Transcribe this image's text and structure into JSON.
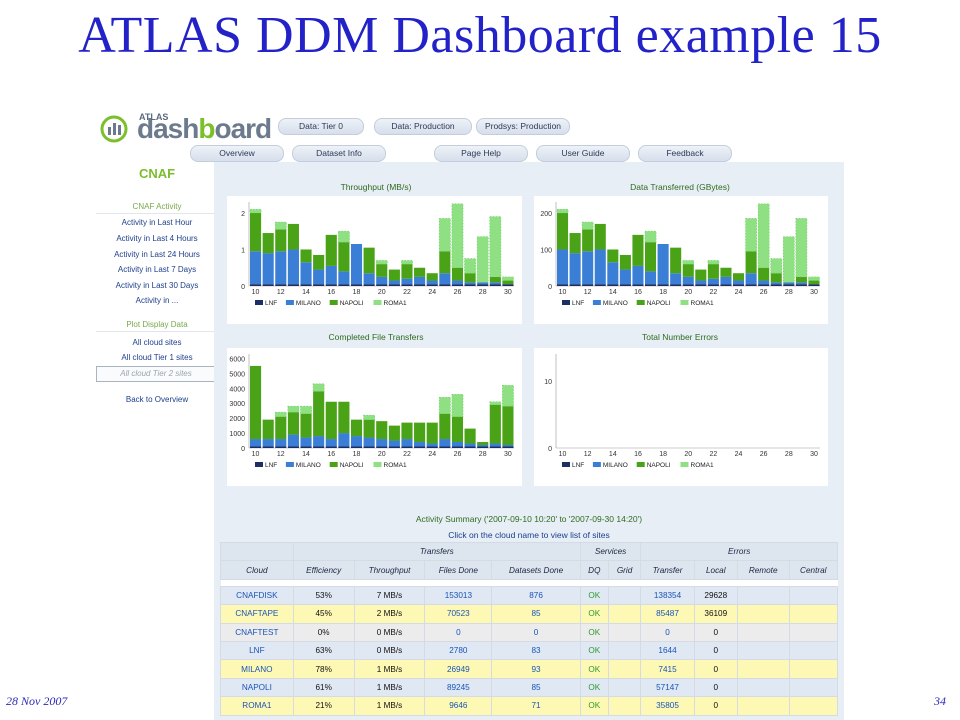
{
  "slide": {
    "title": "ATLAS DDM Dashboard example 15",
    "date": "28 Nov 2007",
    "page": "34"
  },
  "header": {
    "logo_small": "ATLAS",
    "logo_a": "dash",
    "logo_b": "b",
    "logo_c": "oard",
    "top_tabs": [
      "Data: Tier 0",
      "Data: Production",
      "Prodsys: Production"
    ],
    "nav_tabs": [
      "Overview",
      "Dataset Info",
      "Page Help",
      "User Guide",
      "Feedback"
    ]
  },
  "sidebar": {
    "site": "CNAF",
    "activity_title": "CNAF Activity",
    "activity_items": [
      "Activity in Last Hour",
      "Activity in Last 4 Hours",
      "Activity in Last 24 Hours",
      "Activity in Last 7 Days",
      "Activity in Last 30 Days",
      "Activity in ..."
    ],
    "plot_title": "Plot Display Data",
    "plot_items": [
      "All cloud sites",
      "All cloud Tier 1 sites",
      "All cloud Tier 2 sites"
    ],
    "back": "Back to Overview"
  },
  "colors": {
    "LNF": "#1b2f66",
    "MILANO": "#3a7fd5",
    "NAPOLI": "#4aa316",
    "ROMA1": "#8fe083",
    "title_blue": "#2222c8",
    "accent_green": "#7cbd2d"
  },
  "chart_data": [
    {
      "type": "bar",
      "title": "Throughput (MB/s)",
      "x": [
        10,
        11,
        12,
        13,
        14,
        15,
        16,
        17,
        18,
        19,
        20,
        21,
        22,
        23,
        24,
        25,
        26,
        27,
        28,
        29,
        30
      ],
      "xticks": [
        "10",
        "12",
        "14",
        "16",
        "18",
        "20",
        "22",
        "24",
        "26",
        "28",
        "30"
      ],
      "yticks": [
        "0",
        "1",
        "2"
      ],
      "ylim": [
        0,
        2.3
      ],
      "series": [
        {
          "name": "LNF",
          "values": [
            0.05,
            0.05,
            0.05,
            0.05,
            0.05,
            0.05,
            0.05,
            0.05,
            0.05,
            0.05,
            0.05,
            0.05,
            0.05,
            0.05,
            0.05,
            0.05,
            0.05,
            0.05,
            0.05,
            0.05,
            0.05
          ]
        },
        {
          "name": "MILANO",
          "values": [
            0.9,
            0.85,
            0.9,
            0.95,
            0.6,
            0.4,
            0.5,
            0.35,
            1.1,
            0.3,
            0.2,
            0.1,
            0.15,
            0.2,
            0.1,
            0.3,
            0.1,
            0.05,
            0.05,
            0.05,
            0.0
          ]
        },
        {
          "name": "NAPOLI",
          "values": [
            1.05,
            0.55,
            0.6,
            0.7,
            0.35,
            0.4,
            0.85,
            0.8,
            0.0,
            0.7,
            0.35,
            0.3,
            0.4,
            0.25,
            0.2,
            0.6,
            0.35,
            0.25,
            0.0,
            0.15,
            0.1
          ]
        },
        {
          "name": "ROMA1",
          "values": [
            0.1,
            0.0,
            0.2,
            0.0,
            0.0,
            0.0,
            0.0,
            0.3,
            0.0,
            0.0,
            0.1,
            0.0,
            0.1,
            0.0,
            0.0,
            0.9,
            1.75,
            0.4,
            1.25,
            1.65,
            0.1
          ]
        }
      ]
    },
    {
      "type": "bar",
      "title": "Data Transferred (GBytes)",
      "x": [
        10,
        11,
        12,
        13,
        14,
        15,
        16,
        17,
        18,
        19,
        20,
        21,
        22,
        23,
        24,
        25,
        26,
        27,
        28,
        29,
        30
      ],
      "xticks": [
        "10",
        "12",
        "14",
        "16",
        "18",
        "20",
        "22",
        "24",
        "26",
        "28",
        "30"
      ],
      "yticks": [
        "0",
        "100",
        "200"
      ],
      "ylim": [
        0,
        230
      ],
      "series": [
        {
          "name": "LNF",
          "values": [
            5,
            5,
            5,
            5,
            5,
            5,
            5,
            5,
            5,
            5,
            5,
            5,
            5,
            5,
            5,
            5,
            5,
            5,
            5,
            5,
            5
          ]
        },
        {
          "name": "MILANO",
          "values": [
            95,
            85,
            90,
            95,
            60,
            40,
            50,
            35,
            110,
            30,
            20,
            10,
            15,
            20,
            10,
            30,
            10,
            5,
            5,
            5,
            0
          ]
        },
        {
          "name": "NAPOLI",
          "values": [
            100,
            55,
            60,
            70,
            35,
            40,
            85,
            80,
            0,
            70,
            35,
            30,
            40,
            25,
            20,
            60,
            35,
            25,
            0,
            15,
            10
          ]
        },
        {
          "name": "ROMA1",
          "values": [
            10,
            0,
            20,
            0,
            0,
            0,
            0,
            30,
            0,
            0,
            10,
            0,
            10,
            0,
            0,
            90,
            175,
            40,
            125,
            160,
            10
          ]
        }
      ]
    },
    {
      "type": "bar",
      "title": "Completed File Transfers",
      "x": [
        10,
        11,
        12,
        13,
        14,
        15,
        16,
        17,
        18,
        19,
        20,
        21,
        22,
        23,
        24,
        25,
        26,
        27,
        28,
        29,
        30
      ],
      "xticks": [
        "10",
        "12",
        "14",
        "16",
        "18",
        "20",
        "22",
        "24",
        "26",
        "28",
        "30"
      ],
      "yticks": [
        "0",
        "1000",
        "2000",
        "3000",
        "4000",
        "5000",
        "6000"
      ],
      "ylim": [
        0,
        6300
      ],
      "series": [
        {
          "name": "LNF",
          "values": [
            100,
            100,
            100,
            100,
            100,
            100,
            100,
            100,
            100,
            100,
            100,
            100,
            100,
            100,
            100,
            100,
            100,
            100,
            100,
            100,
            100
          ]
        },
        {
          "name": "MILANO",
          "values": [
            500,
            500,
            500,
            800,
            600,
            700,
            500,
            900,
            700,
            600,
            500,
            400,
            500,
            300,
            200,
            500,
            300,
            200,
            100,
            200,
            100
          ]
        },
        {
          "name": "NAPOLI",
          "values": [
            4900,
            1300,
            1500,
            1500,
            1600,
            3000,
            2500,
            2100,
            1100,
            1200,
            1200,
            1000,
            1100,
            1300,
            1400,
            1700,
            1700,
            1000,
            200,
            2600,
            2600
          ]
        },
        {
          "name": "ROMA1",
          "values": [
            0,
            0,
            300,
            400,
            500,
            500,
            0,
            0,
            0,
            300,
            0,
            0,
            0,
            0,
            0,
            1100,
            1500,
            0,
            0,
            200,
            1400
          ]
        }
      ]
    },
    {
      "type": "bar",
      "title": "Total Number Errors",
      "xticks": [
        "10",
        "12",
        "14",
        "16",
        "18",
        "20",
        "22",
        "24",
        "26",
        "28",
        "30"
      ],
      "yticks": [
        "0",
        "10"
      ],
      "ylim": [
        0,
        14
      ],
      "series": [
        {
          "name": "LNF",
          "values": []
        },
        {
          "name": "MILANO",
          "values": []
        },
        {
          "name": "NAPOLI",
          "values": []
        },
        {
          "name": "ROMA1",
          "values": []
        }
      ]
    }
  ],
  "summary": {
    "title": "Activity Summary ('2007-09-10 10:20' to '2007-09-30 14:20')",
    "subtitle": "Click on the cloud name to view list of sites",
    "groups": [
      "Transfers",
      "Services",
      "Errors"
    ],
    "columns": [
      "Cloud",
      "Efficiency",
      "Throughput",
      "Files Done",
      "Datasets Done",
      "DQ",
      "Grid",
      "Transfer",
      "Local",
      "Remote",
      "Central"
    ],
    "rows": [
      {
        "cloud": "CNAFDISK",
        "efficiency": "53%",
        "throughput": "7 MB/s",
        "files_done": "153013",
        "datasets_done": "876",
        "dq": "OK",
        "grid": "",
        "transfer": "138354",
        "local": "29628",
        "remote": "",
        "central": "",
        "style": "blue"
      },
      {
        "cloud": "CNAFTAPE",
        "efficiency": "45%",
        "throughput": "2 MB/s",
        "files_done": "70523",
        "datasets_done": "85",
        "dq": "OK",
        "grid": "",
        "transfer": "85487",
        "local": "36109",
        "remote": "",
        "central": "",
        "style": "yellow"
      },
      {
        "cloud": "CNAFTEST",
        "efficiency": "0%",
        "throughput": "0 MB/s",
        "files_done": "0",
        "datasets_done": "0",
        "dq": "OK",
        "grid": "",
        "transfer": "0",
        "local": "0",
        "remote": "",
        "central": "",
        "style": "grey"
      },
      {
        "cloud": "LNF",
        "efficiency": "63%",
        "throughput": "0 MB/s",
        "files_done": "2780",
        "datasets_done": "83",
        "dq": "OK",
        "grid": "",
        "transfer": "1644",
        "local": "0",
        "remote": "",
        "central": "",
        "style": "blue"
      },
      {
        "cloud": "MILANO",
        "efficiency": "78%",
        "throughput": "1 MB/s",
        "files_done": "26949",
        "datasets_done": "93",
        "dq": "OK",
        "grid": "",
        "transfer": "7415",
        "local": "0",
        "remote": "",
        "central": "",
        "style": "yellow"
      },
      {
        "cloud": "NAPOLI",
        "efficiency": "61%",
        "throughput": "1 MB/s",
        "files_done": "89245",
        "datasets_done": "85",
        "dq": "OK",
        "grid": "",
        "transfer": "57147",
        "local": "0",
        "remote": "",
        "central": "",
        "style": "blue"
      },
      {
        "cloud": "ROMA1",
        "efficiency": "21%",
        "throughput": "1 MB/s",
        "files_done": "9646",
        "datasets_done": "71",
        "dq": "OK",
        "grid": "",
        "transfer": "35805",
        "local": "0",
        "remote": "",
        "central": "",
        "style": "yellow"
      }
    ]
  }
}
